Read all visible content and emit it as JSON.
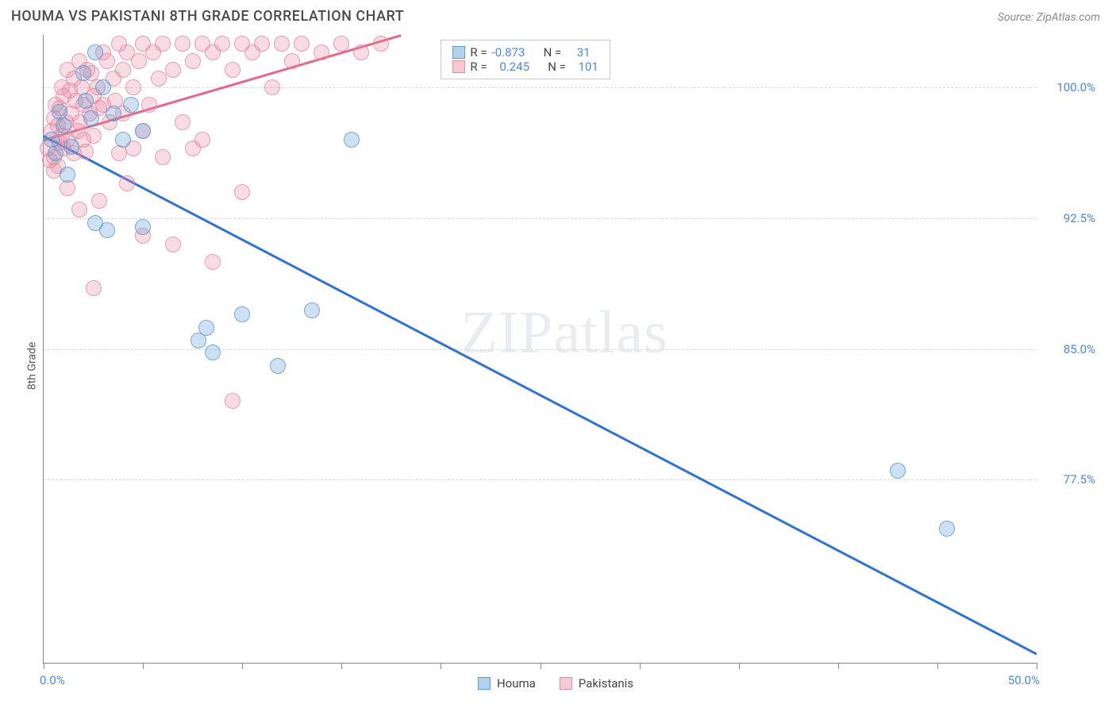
{
  "header": {
    "title": "HOUMA VS PAKISTANI 8TH GRADE CORRELATION CHART",
    "source": "Source: ZipAtlas.com"
  },
  "chart": {
    "type": "scatter",
    "ylabel": "8th Grade",
    "x_domain": [
      0,
      50
    ],
    "y_domain": [
      67,
      103
    ],
    "x_ticks_minor": [
      0,
      5,
      10,
      15,
      20,
      25,
      30,
      35,
      40,
      45,
      50
    ],
    "x_tick_labels": [
      {
        "value": 0,
        "label": "0.0%"
      },
      {
        "value": 50,
        "label": "50.0%"
      }
    ],
    "y_gridlines": [
      77.5,
      85.0,
      92.5,
      100.0
    ],
    "y_tick_labels": [
      "77.5%",
      "85.0%",
      "92.5%",
      "100.0%"
    ],
    "grid_color": "#d9d9d9",
    "background_color": "#ffffff",
    "axis_color": "#888888",
    "label_color": "#4a86e8",
    "marker_radius": 8,
    "watermark": "ZIPatlas",
    "series": {
      "houma": {
        "label": "Houma",
        "color_border": "#5b9bd5",
        "color_fill": "rgba(91,155,213,0.35)",
        "R": "-0.873",
        "N": "31",
        "trend": {
          "x1": 0,
          "y1": 97.2,
          "x2": 50,
          "y2": 67.5,
          "color": "#2f72d6",
          "width": 2.5
        },
        "points": [
          [
            0.4,
            97.0
          ],
          [
            0.6,
            96.2
          ],
          [
            0.8,
            98.6
          ],
          [
            1.0,
            97.8
          ],
          [
            1.2,
            95.0
          ],
          [
            1.4,
            96.6
          ],
          [
            2.0,
            100.8
          ],
          [
            2.1,
            99.2
          ],
          [
            2.4,
            98.2
          ],
          [
            2.6,
            102.0
          ],
          [
            3.0,
            100.0
          ],
          [
            3.5,
            98.5
          ],
          [
            4.0,
            97.0
          ],
          [
            4.4,
            99.0
          ],
          [
            5.0,
            97.5
          ],
          [
            5.0,
            92.0
          ],
          [
            2.6,
            92.2
          ],
          [
            3.2,
            91.8
          ],
          [
            7.8,
            85.5
          ],
          [
            8.2,
            86.2
          ],
          [
            8.5,
            84.8
          ],
          [
            10.0,
            87.0
          ],
          [
            11.8,
            84.0
          ],
          [
            13.5,
            87.2
          ],
          [
            15.5,
            97.0
          ],
          [
            43.0,
            78.0
          ],
          [
            45.5,
            74.7
          ]
        ]
      },
      "pakistanis": {
        "label": "Pakistanis",
        "color_border": "#e88aa2",
        "color_fill": "rgba(232,138,162,0.35)",
        "R": "0.245",
        "N": "101",
        "trend": {
          "x1": 0,
          "y1": 97.0,
          "x2": 18,
          "y2": 103.0,
          "color": "#e56789",
          "width": 2.5
        },
        "points": [
          [
            0.2,
            96.5
          ],
          [
            0.3,
            95.8
          ],
          [
            0.4,
            97.5
          ],
          [
            0.5,
            98.2
          ],
          [
            0.5,
            96.0
          ],
          [
            0.6,
            99.0
          ],
          [
            0.7,
            97.8
          ],
          [
            0.7,
            95.5
          ],
          [
            0.8,
            98.8
          ],
          [
            0.8,
            96.8
          ],
          [
            0.9,
            100.0
          ],
          [
            0.9,
            97.2
          ],
          [
            1.0,
            99.5
          ],
          [
            1.0,
            96.5
          ],
          [
            1.1,
            98.0
          ],
          [
            1.2,
            101.0
          ],
          [
            1.2,
            97.0
          ],
          [
            1.3,
            99.8
          ],
          [
            1.4,
            98.5
          ],
          [
            1.5,
            100.5
          ],
          [
            1.5,
            96.2
          ],
          [
            1.6,
            99.2
          ],
          [
            1.7,
            97.5
          ],
          [
            1.8,
            101.5
          ],
          [
            1.8,
            98.0
          ],
          [
            1.9,
            100.0
          ],
          [
            2.0,
            99.0
          ],
          [
            2.0,
            97.0
          ],
          [
            2.1,
            96.3
          ],
          [
            2.2,
            101.0
          ],
          [
            2.3,
            98.5
          ],
          [
            2.4,
            100.8
          ],
          [
            2.5,
            99.5
          ],
          [
            2.5,
            97.2
          ],
          [
            2.7,
            100.0
          ],
          [
            2.8,
            98.8
          ],
          [
            3.0,
            102.0
          ],
          [
            3.0,
            99.0
          ],
          [
            3.2,
            101.5
          ],
          [
            3.3,
            98.0
          ],
          [
            3.5,
            100.5
          ],
          [
            3.6,
            99.2
          ],
          [
            3.8,
            102.5
          ],
          [
            4.0,
            101.0
          ],
          [
            4.0,
            98.5
          ],
          [
            4.2,
            102.0
          ],
          [
            4.5,
            100.0
          ],
          [
            4.5,
            96.5
          ],
          [
            4.8,
            101.5
          ],
          [
            5.0,
            102.5
          ],
          [
            5.0,
            97.5
          ],
          [
            5.0,
            91.5
          ],
          [
            5.3,
            99.0
          ],
          [
            5.5,
            102.0
          ],
          [
            5.8,
            100.5
          ],
          [
            6.0,
            102.5
          ],
          [
            6.0,
            96.0
          ],
          [
            6.5,
            101.0
          ],
          [
            6.5,
            91.0
          ],
          [
            7.0,
            102.5
          ],
          [
            7.0,
            98.0
          ],
          [
            7.5,
            101.5
          ],
          [
            7.5,
            96.5
          ],
          [
            8.0,
            102.5
          ],
          [
            8.0,
            97.0
          ],
          [
            8.5,
            102.0
          ],
          [
            8.5,
            90.0
          ],
          [
            9.0,
            102.5
          ],
          [
            9.5,
            101.0
          ],
          [
            10.0,
            102.5
          ],
          [
            10.0,
            94.0
          ],
          [
            10.5,
            102.0
          ],
          [
            11.0,
            102.5
          ],
          [
            11.5,
            100.0
          ],
          [
            12.0,
            102.5
          ],
          [
            12.5,
            101.5
          ],
          [
            13.0,
            102.5
          ],
          [
            14.0,
            102.0
          ],
          [
            15.0,
            102.5
          ],
          [
            16.0,
            102.0
          ],
          [
            17.0,
            102.5
          ],
          [
            9.5,
            82.0
          ],
          [
            2.5,
            88.5
          ],
          [
            2.8,
            93.5
          ],
          [
            1.2,
            94.2
          ],
          [
            0.5,
            95.2
          ],
          [
            1.8,
            93.0
          ],
          [
            3.8,
            96.2
          ],
          [
            4.2,
            94.5
          ]
        ]
      }
    }
  },
  "stats_legend": {
    "R_label": "R =",
    "N_label": "N ="
  }
}
